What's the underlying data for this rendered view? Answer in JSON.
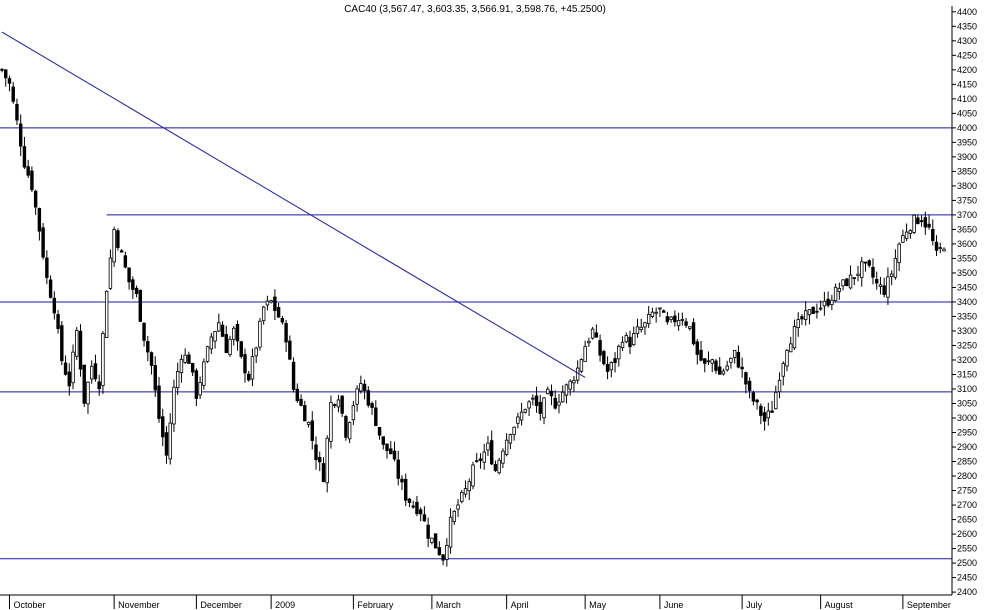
{
  "chart_data": {
    "type": "candlestick",
    "title": "CAC40 (3,567.47, 3,603.35, 3,566.91, 3,598.76, +45.2500)",
    "ylim": [
      2390,
      4420
    ],
    "grid": false,
    "y_ticks": [
      2400,
      2450,
      2500,
      2550,
      2600,
      2650,
      2700,
      2750,
      2800,
      2850,
      2900,
      2950,
      3000,
      3050,
      3100,
      3150,
      3200,
      3250,
      3300,
      3350,
      3400,
      3450,
      3500,
      3550,
      3600,
      3650,
      3700,
      3750,
      3800,
      3850,
      3900,
      3950,
      4000,
      4050,
      4100,
      4150,
      4200,
      4250,
      4300,
      4350,
      4400
    ],
    "x_labels": [
      "October",
      "November",
      "December",
      "2009",
      "February",
      "March",
      "April",
      "May",
      "June",
      "July",
      "August",
      "September"
    ],
    "x_label_positions": [
      2,
      30,
      52,
      72,
      94,
      115,
      135,
      156,
      176,
      198,
      219,
      241
    ],
    "horizontal_lines": [
      4000,
      3700,
      3400,
      3090,
      2515
    ],
    "trendline": {
      "start": [
        0,
        4330
      ],
      "end": [
        156,
        3140
      ]
    },
    "close_path": [
      [
        0,
        4200
      ],
      [
        2,
        4150
      ],
      [
        4,
        4020
      ],
      [
        6,
        3880
      ],
      [
        8,
        3800
      ],
      [
        10,
        3650
      ],
      [
        12,
        3480
      ],
      [
        14,
        3380
      ],
      [
        16,
        3200
      ],
      [
        18,
        3120
      ],
      [
        20,
        3300
      ],
      [
        22,
        3060
      ],
      [
        24,
        3180
      ],
      [
        26,
        3120
      ],
      [
        28,
        3450
      ],
      [
        30,
        3650
      ],
      [
        32,
        3560
      ],
      [
        34,
        3470
      ],
      [
        36,
        3420
      ],
      [
        38,
        3280
      ],
      [
        40,
        3180
      ],
      [
        42,
        3000
      ],
      [
        44,
        2870
      ],
      [
        46,
        3100
      ],
      [
        48,
        3220
      ],
      [
        50,
        3200
      ],
      [
        52,
        3080
      ],
      [
        54,
        3180
      ],
      [
        56,
        3280
      ],
      [
        58,
        3330
      ],
      [
        60,
        3240
      ],
      [
        62,
        3300
      ],
      [
        64,
        3200
      ],
      [
        66,
        3140
      ],
      [
        68,
        3250
      ],
      [
        70,
        3380
      ],
      [
        72,
        3400
      ],
      [
        74,
        3350
      ],
      [
        76,
        3280
      ],
      [
        78,
        3100
      ],
      [
        80,
        3040
      ],
      [
        82,
        2980
      ],
      [
        84,
        2870
      ],
      [
        86,
        2800
      ],
      [
        88,
        3050
      ],
      [
        90,
        3080
      ],
      [
        92,
        2950
      ],
      [
        94,
        3050
      ],
      [
        96,
        3120
      ],
      [
        98,
        3060
      ],
      [
        100,
        2990
      ],
      [
        102,
        2900
      ],
      [
        104,
        2880
      ],
      [
        106,
        2800
      ],
      [
        108,
        2730
      ],
      [
        110,
        2700
      ],
      [
        112,
        2680
      ],
      [
        114,
        2600
      ],
      [
        116,
        2560
      ],
      [
        118,
        2520
      ],
      [
        120,
        2640
      ],
      [
        122,
        2700
      ],
      [
        124,
        2750
      ],
      [
        126,
        2820
      ],
      [
        128,
        2860
      ],
      [
        130,
        2900
      ],
      [
        132,
        2820
      ],
      [
        134,
        2900
      ],
      [
        136,
        2960
      ],
      [
        138,
        2990
      ],
      [
        140,
        3040
      ],
      [
        142,
        3060
      ],
      [
        144,
        3020
      ],
      [
        146,
        3080
      ],
      [
        148,
        3050
      ],
      [
        150,
        3090
      ],
      [
        152,
        3120
      ],
      [
        154,
        3170
      ],
      [
        156,
        3250
      ],
      [
        158,
        3300
      ],
      [
        160,
        3220
      ],
      [
        162,
        3160
      ],
      [
        164,
        3200
      ],
      [
        166,
        3280
      ],
      [
        168,
        3260
      ],
      [
        170,
        3300
      ],
      [
        172,
        3320
      ],
      [
        174,
        3360
      ],
      [
        176,
        3370
      ],
      [
        178,
        3320
      ],
      [
        180,
        3340
      ],
      [
        182,
        3350
      ],
      [
        184,
        3310
      ],
      [
        186,
        3220
      ],
      [
        188,
        3180
      ],
      [
        190,
        3200
      ],
      [
        192,
        3150
      ],
      [
        194,
        3180
      ],
      [
        196,
        3220
      ],
      [
        198,
        3160
      ],
      [
        200,
        3080
      ],
      [
        202,
        3040
      ],
      [
        204,
        2990
      ],
      [
        206,
        3030
      ],
      [
        208,
        3150
      ],
      [
        210,
        3250
      ],
      [
        212,
        3300
      ],
      [
        214,
        3340
      ],
      [
        216,
        3360
      ],
      [
        218,
        3380
      ],
      [
        220,
        3390
      ],
      [
        222,
        3420
      ],
      [
        224,
        3450
      ],
      [
        226,
        3470
      ],
      [
        228,
        3490
      ],
      [
        230,
        3520
      ],
      [
        232,
        3510
      ],
      [
        234,
        3460
      ],
      [
        236,
        3440
      ],
      [
        238,
        3500
      ],
      [
        240,
        3600
      ],
      [
        242,
        3650
      ],
      [
        244,
        3680
      ],
      [
        246,
        3690
      ],
      [
        248,
        3650
      ],
      [
        250,
        3560
      ],
      [
        252,
        3599
      ]
    ],
    "x_range": [
      0,
      252
    ]
  }
}
